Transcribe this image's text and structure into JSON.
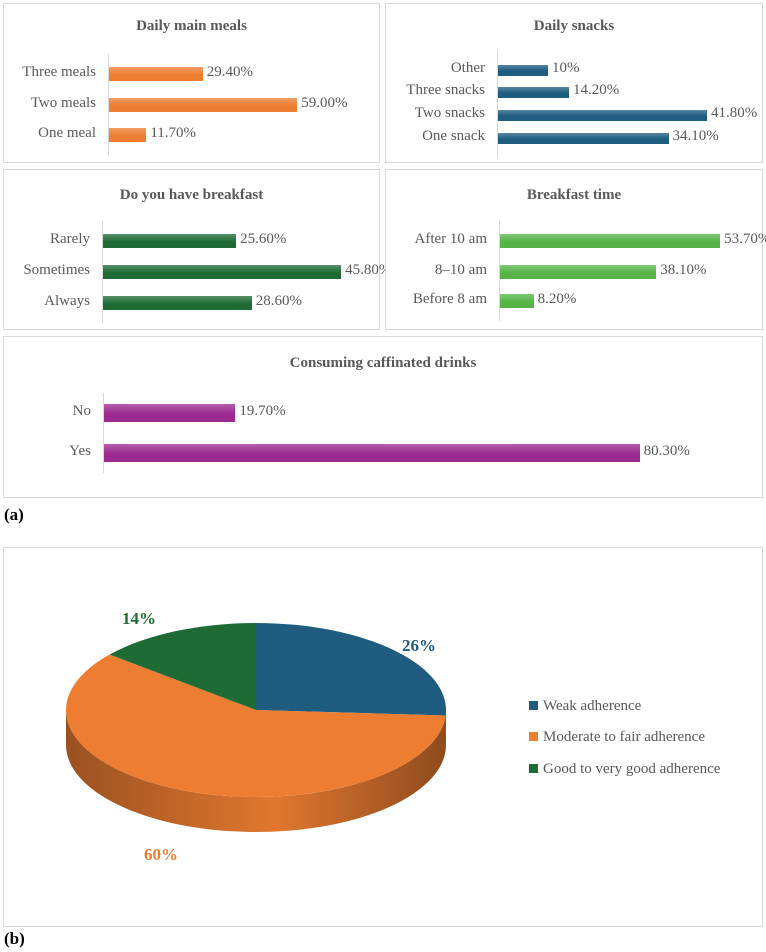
{
  "labels": {
    "a": "(a)",
    "b": "(b)"
  },
  "chart_data": [
    {
      "type": "bar",
      "orientation": "horizontal",
      "title": "Daily main meals",
      "color": "#ED7D31",
      "categories": [
        "Three meals",
        "Two meals",
        "One meal"
      ],
      "values": [
        29.4,
        59.0,
        11.7
      ],
      "value_labels": [
        "29.40%",
        "59.00%",
        "11.70%"
      ]
    },
    {
      "type": "bar",
      "orientation": "horizontal",
      "title": "Daily snacks",
      "color": "#1F5C80",
      "categories": [
        "Other",
        "Three snacks",
        "Two snacks",
        "One snack"
      ],
      "values": [
        10,
        14.2,
        41.8,
        34.1
      ],
      "value_labels": [
        "10%",
        "14.20%",
        "41.80%",
        "34.10%"
      ]
    },
    {
      "type": "bar",
      "orientation": "horizontal",
      "title": "Do you have breakfast",
      "color": "#1E6B36",
      "categories": [
        "Rarely",
        "Sometimes",
        "Always"
      ],
      "values": [
        25.6,
        45.8,
        28.6
      ],
      "value_labels": [
        "25.60%",
        "45.80%",
        "28.60%"
      ]
    },
    {
      "type": "bar",
      "orientation": "horizontal",
      "title": "Breakfast time",
      "color": "#56B447",
      "categories": [
        "After 10 am",
        "8–10 am",
        "Before 8 am"
      ],
      "values": [
        53.7,
        38.1,
        8.2
      ],
      "value_labels": [
        "53.70%",
        "38.10%",
        "8.20%"
      ]
    },
    {
      "type": "bar",
      "orientation": "horizontal",
      "title": "Consuming caffinated drinks",
      "color": "#9B2A91",
      "categories": [
        "No",
        "Yes"
      ],
      "values": [
        19.7,
        80.3
      ],
      "value_labels": [
        "19.70%",
        "80.30%"
      ]
    },
    {
      "type": "pie",
      "title": "",
      "slices": [
        {
          "name": "Weak adherence",
          "value": 26,
          "label": "26%",
          "color": "#1F5C80"
        },
        {
          "name": "Moderate to fair adherence",
          "value": 60,
          "label": "60%",
          "color": "#ED7D31"
        },
        {
          "name": "Good to very good adherence",
          "value": 14,
          "label": "14%",
          "color": "#1E6B36"
        }
      ],
      "legend": "right"
    }
  ]
}
